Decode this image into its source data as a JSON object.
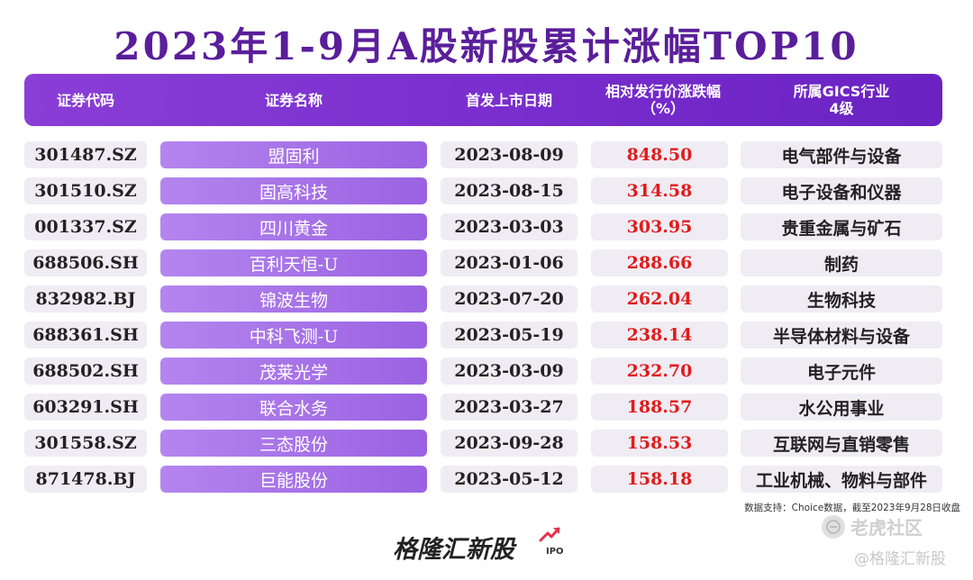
{
  "title": "2023年1-9月A股新股累计涨幅TOP10",
  "headers": {
    "code": "证券代码",
    "name": "证券名称",
    "date": "首发上市日期",
    "pct_line1": "相对发行价涨跌幅",
    "pct_line2": "（%）",
    "industry_line1": "所属GICS行业",
    "industry_line2": "4级"
  },
  "rows": [
    {
      "code": "301487.SZ",
      "name": "盟固利",
      "date": "2023-08-09",
      "pct": "848.50",
      "industry": "电气部件与设备"
    },
    {
      "code": "301510.SZ",
      "name": "固高科技",
      "date": "2023-08-15",
      "pct": "314.58",
      "industry": "电子设备和仪器"
    },
    {
      "code": "001337.SZ",
      "name": "四川黄金",
      "date": "2023-03-03",
      "pct": "303.95",
      "industry": "贵重金属与矿石"
    },
    {
      "code": "688506.SH",
      "name": "百利天恒-U",
      "date": "2023-01-06",
      "pct": "288.66",
      "industry": "制药"
    },
    {
      "code": "832982.BJ",
      "name": "锦波生物",
      "date": "2023-07-20",
      "pct": "262.04",
      "industry": "生物科技"
    },
    {
      "code": "688361.SH",
      "name": "中科飞测-U",
      "date": "2023-05-19",
      "pct": "238.14",
      "industry": "半导体材料与设备"
    },
    {
      "code": "688502.SH",
      "name": "茂莱光学",
      "date": "2023-03-09",
      "pct": "232.70",
      "industry": "电子元件"
    },
    {
      "code": "603291.SH",
      "name": "联合水务",
      "date": "2023-03-27",
      "pct": "188.57",
      "industry": "水公用事业"
    },
    {
      "code": "301558.SZ",
      "name": "三态股份",
      "date": "2023-09-28",
      "pct": "158.53",
      "industry": "互联网与直销零售"
    },
    {
      "code": "871478.BJ",
      "name": "巨能股份",
      "date": "2023-05-12",
      "pct": "158.18",
      "industry": "工业机械、物料与部件"
    }
  ],
  "footnote": "数据支持：Choice数据，截至2023年9月28日收盘",
  "brand": {
    "name": "格隆汇新股",
    "suffix": "IPO"
  },
  "watermarks": {
    "tiger": "老虎社区",
    "handle": "@格隆汇新股"
  },
  "colors": {
    "title": "#5a1e9a",
    "header": "#7a2fce",
    "name_cell": "#a874e8",
    "positive": "#e01c1c"
  }
}
